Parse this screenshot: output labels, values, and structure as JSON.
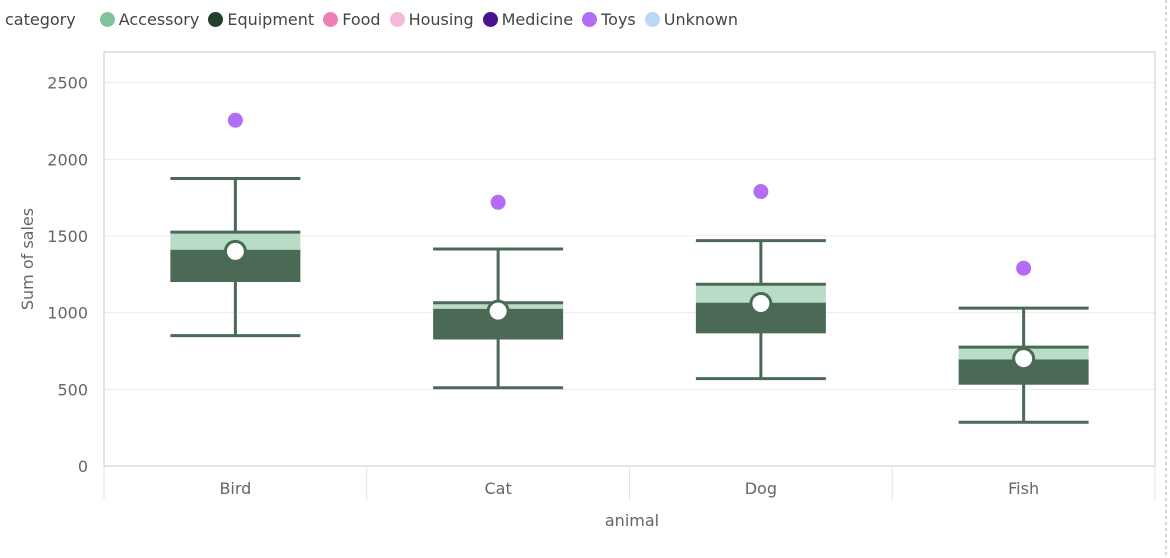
{
  "legend": {
    "title": "category",
    "items": [
      {
        "label": "Accessory",
        "color": "#7fc59b"
      },
      {
        "label": "Equipment",
        "color": "#1f3e2c"
      },
      {
        "label": "Food",
        "color": "#f07fb6"
      },
      {
        "label": "Housing",
        "color": "#f4b8d8"
      },
      {
        "label": "Medicine",
        "color": "#4a1191"
      },
      {
        "label": "Toys",
        "color": "#b26cf6"
      },
      {
        "label": "Unknown",
        "color": "#bcd7f4"
      }
    ]
  },
  "chart_data": {
    "type": "box",
    "xlabel": "animal",
    "ylabel": "Sum of sales",
    "ylim": [
      0,
      2700
    ],
    "yticks": [
      0,
      500,
      1000,
      1500,
      2000,
      2500
    ],
    "categories": [
      "Bird",
      "Cat",
      "Dog",
      "Fish"
    ],
    "grid": true,
    "colors": {
      "box_dark": "#4a6a56",
      "box_light": "#b9dcc6",
      "whisker": "#4a6a56",
      "outlier": "#b26cf6",
      "mean_fill": "#ffffff"
    },
    "boxes": [
      {
        "category": "Bird",
        "min": 850,
        "q1": 1200,
        "median": 1410,
        "q3": 1525,
        "max": 1875,
        "mean": 1400,
        "outliers": [
          2255
        ]
      },
      {
        "category": "Cat",
        "min": 510,
        "q1": 825,
        "median": 1025,
        "q3": 1065,
        "max": 1415,
        "mean": 1010,
        "outliers": [
          1720
        ]
      },
      {
        "category": "Dog",
        "min": 570,
        "q1": 865,
        "median": 1065,
        "q3": 1185,
        "max": 1470,
        "mean": 1060,
        "outliers": [
          1790
        ]
      },
      {
        "category": "Fish",
        "min": 285,
        "q1": 530,
        "median": 695,
        "q3": 775,
        "max": 1030,
        "mean": 700,
        "outliers": [
          1290
        ]
      }
    ]
  }
}
